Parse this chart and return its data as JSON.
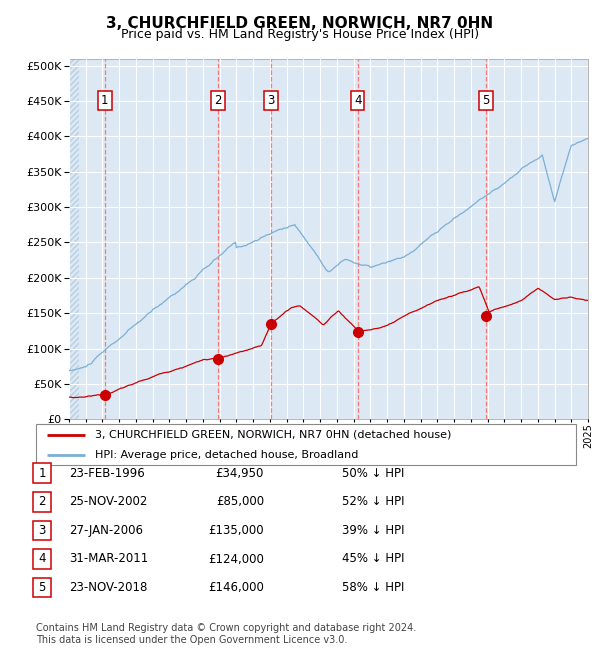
{
  "title": "3, CHURCHFIELD GREEN, NORWICH, NR7 0HN",
  "subtitle": "Price paid vs. HM Land Registry's House Price Index (HPI)",
  "title_fontsize": 11,
  "subtitle_fontsize": 9,
  "bg_color": "#dce9f5",
  "grid_color": "#ffffff",
  "red_line_color": "#cc0000",
  "blue_line_color": "#7bafd4",
  "sale_marker_color": "#cc0000",
  "dashed_line_color": "#ff6666",
  "hatch_color": "#b8cfe0",
  "ylim": [
    0,
    510000
  ],
  "yticks": [
    0,
    50000,
    100000,
    150000,
    200000,
    250000,
    300000,
    350000,
    400000,
    450000,
    500000
  ],
  "xlabel_start": 1994,
  "xlabel_end": 2025,
  "footer_text": "Contains HM Land Registry data © Crown copyright and database right 2024.\nThis data is licensed under the Open Government Licence v3.0.",
  "legend_entries": [
    "3, CHURCHFIELD GREEN, NORWICH, NR7 0HN (detached house)",
    "HPI: Average price, detached house, Broadland"
  ],
  "sales": [
    {
      "num": 1,
      "date": "23-FEB-1996",
      "price": 34950,
      "price_str": "£34,950",
      "pct": "50% ↓ HPI",
      "year": 1996.14
    },
    {
      "num": 2,
      "date": "25-NOV-2002",
      "price": 85000,
      "price_str": "£85,000",
      "pct": "52% ↓ HPI",
      "year": 2002.9
    },
    {
      "num": 3,
      "date": "27-JAN-2006",
      "price": 135000,
      "price_str": "£135,000",
      "pct": "39% ↓ HPI",
      "year": 2006.07
    },
    {
      "num": 4,
      "date": "31-MAR-2011",
      "price": 124000,
      "price_str": "£124,000",
      "pct": "45% ↓ HPI",
      "year": 2011.25
    },
    {
      "num": 5,
      "date": "23-NOV-2018",
      "price": 146000,
      "price_str": "£146,000",
      "pct": "58% ↓ HPI",
      "year": 2018.9
    }
  ]
}
